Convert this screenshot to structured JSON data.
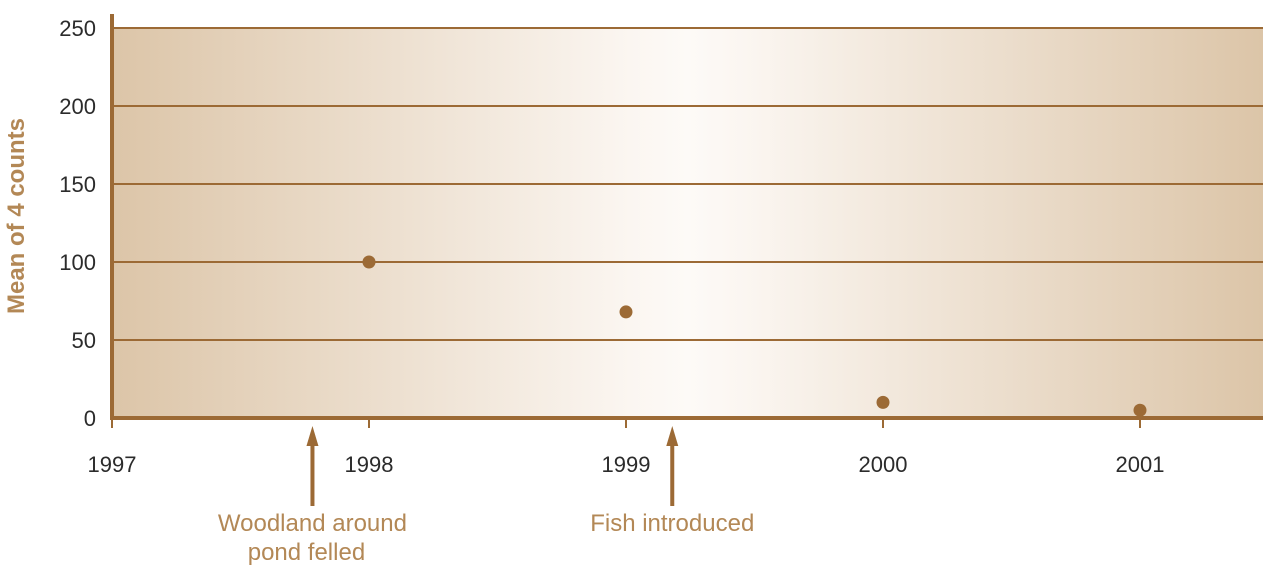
{
  "chart_data": {
    "type": "scatter",
    "title": "",
    "xlabel": "",
    "ylabel": "Mean of 4 counts",
    "xlim": [
      1997,
      2001.45
    ],
    "ylim": [
      0,
      250
    ],
    "grid": true,
    "x_ticks": [
      "1997",
      "1998",
      "1999",
      "2000",
      "2001"
    ],
    "y_ticks": [
      "0",
      "50",
      "100",
      "150",
      "200",
      "250"
    ],
    "series": [
      {
        "points": [
          {
            "x": 1998,
            "y": 100
          },
          {
            "x": 1999,
            "y": 68
          },
          {
            "x": 2000,
            "y": 10
          },
          {
            "x": 2001,
            "y": 5
          }
        ]
      }
    ],
    "annotations": [
      {
        "x": 1997.78,
        "lines": [
          "Woodland around",
          "pond felled"
        ]
      },
      {
        "x": 1999.18,
        "lines": [
          "Fish introduced"
        ]
      }
    ],
    "colors": {
      "accent": "#9c6a35",
      "label": "#b38856",
      "bg_edge": "#dcc5a8",
      "bg_center": "#fbf6f1"
    }
  }
}
